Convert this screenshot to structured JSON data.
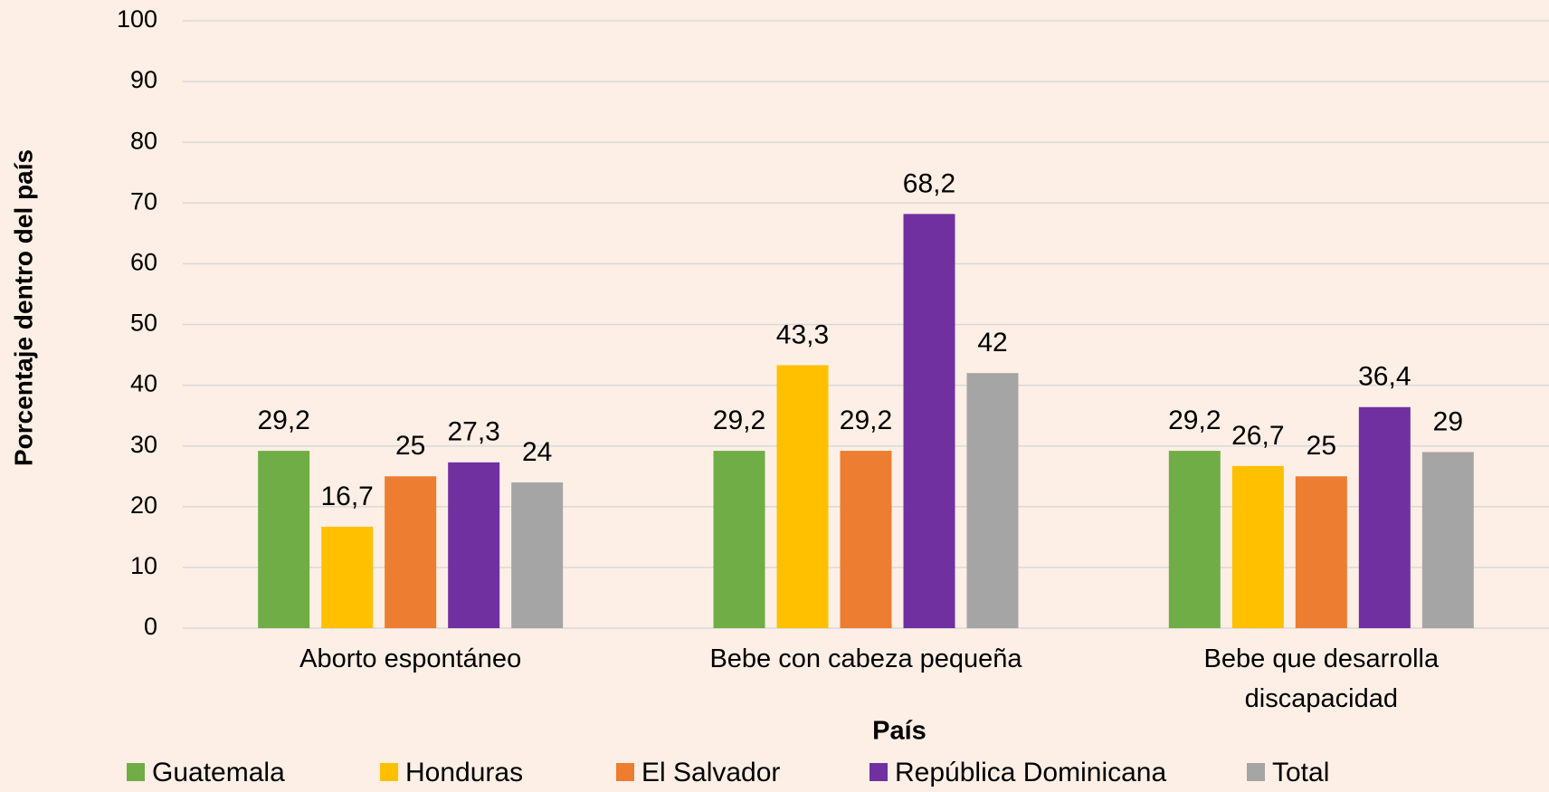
{
  "chart_data": {
    "type": "bar",
    "y_label": "Porcentaje dentro del país",
    "x_label": "País",
    "categories": [
      "Aborto espontáneo",
      "Bebe con cabeza pequeña",
      "Bebe que desarrolla discapacidad"
    ],
    "series": [
      {
        "name": "Guatemala",
        "color": "#70ad47",
        "values": [
          29.2,
          29.2,
          29.2
        ],
        "value_labels": [
          "29,2",
          "29,2",
          "29,2"
        ]
      },
      {
        "name": "Honduras",
        "color": "#ffc000",
        "values": [
          16.7,
          43.3,
          26.7
        ],
        "value_labels": [
          "16,7",
          "43,3",
          "26,7"
        ]
      },
      {
        "name": "El Salvador",
        "color": "#ed7d31",
        "values": [
          25,
          29.2,
          25
        ],
        "value_labels": [
          "25",
          "29,2",
          "25"
        ]
      },
      {
        "name": "República Dominicana",
        "color": "#7030a0",
        "values": [
          27.3,
          68.2,
          36.4
        ],
        "value_labels": [
          "27,3",
          "68,2",
          "36,4"
        ]
      },
      {
        "name": "Total",
        "color": "#a5a5a5",
        "values": [
          24,
          42,
          29
        ],
        "value_labels": [
          "24",
          "42",
          "29"
        ]
      }
    ],
    "ylim": [
      0,
      100
    ],
    "yticks": [
      0,
      10,
      20,
      30,
      40,
      50,
      60,
      70,
      80,
      90,
      100
    ],
    "grid": true
  }
}
